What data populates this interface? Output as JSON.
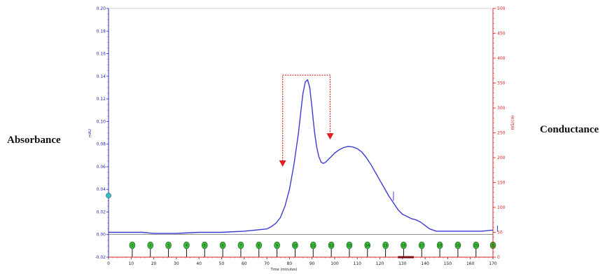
{
  "labels": {
    "left": "Absorbance",
    "right": "Conductance"
  },
  "colors": {
    "trace": "#3b3bd6",
    "left_axis": "#2a2ab8",
    "right_axis": "#e02020",
    "fraction_marker": "#3db83d",
    "pool_bracket": "#e02020"
  },
  "chart_data": {
    "type": "line",
    "title": "",
    "xlabel": "Time (minutes)",
    "ylabel": "mAU",
    "y2label": "mS/cm",
    "xlim": [
      0,
      170
    ],
    "ylim": [
      -0.02,
      0.2
    ],
    "y2lim": [
      0,
      500
    ],
    "xticks": [
      0,
      10,
      20,
      30,
      40,
      50,
      60,
      70,
      80,
      90,
      100,
      110,
      120,
      130,
      140,
      150,
      160,
      170
    ],
    "yticks": [
      -0.02,
      0.0,
      0.02,
      0.04,
      0.06,
      0.08,
      0.1,
      0.12,
      0.14,
      0.16,
      0.18,
      0.2
    ],
    "ytick_labels": [
      "-0.02",
      "0.00",
      "0.02",
      "0.04",
      "0.06",
      "0.08",
      "0.10",
      "0.12",
      "0.14",
      "0.16",
      "0.18",
      "0.20"
    ],
    "y2ticks": [
      0,
      50,
      100,
      150,
      200,
      250,
      300,
      350,
      400,
      450,
      500
    ],
    "grid": false,
    "series": [
      {
        "axis": "left",
        "x": [
          0,
          5,
          10,
          15,
          20,
          30,
          40,
          50,
          60,
          65,
          70,
          72,
          74,
          76,
          78,
          80,
          82,
          84,
          85,
          86,
          87,
          88,
          89,
          90,
          91,
          92,
          93,
          94,
          95,
          96,
          98,
          100,
          102,
          104,
          106,
          108,
          110,
          112,
          114,
          116,
          118,
          120,
          122,
          124,
          126,
          128,
          130,
          132,
          134,
          136,
          138,
          140,
          142,
          145,
          150,
          155,
          160,
          165,
          170
        ],
        "values": [
          0.002,
          0.002,
          0.002,
          0.002,
          0.001,
          0.001,
          0.002,
          0.002,
          0.003,
          0.004,
          0.005,
          0.007,
          0.01,
          0.015,
          0.025,
          0.04,
          0.062,
          0.09,
          0.108,
          0.125,
          0.135,
          0.137,
          0.13,
          0.112,
          0.092,
          0.078,
          0.069,
          0.064,
          0.063,
          0.064,
          0.068,
          0.072,
          0.075,
          0.077,
          0.078,
          0.0775,
          0.076,
          0.073,
          0.068,
          0.062,
          0.055,
          0.048,
          0.041,
          0.034,
          0.028,
          0.022,
          0.018,
          0.016,
          0.014,
          0.013,
          0.011,
          0.008,
          0.005,
          0.003,
          0.003,
          0.003,
          0.003,
          0.003,
          0.004
        ]
      }
    ],
    "fractions": [
      "1",
      "2",
      "3",
      "4",
      "5",
      "6",
      "7",
      "8",
      "9",
      "10",
      "11",
      "12",
      "13",
      "14",
      "15",
      "16",
      "17",
      "18",
      "19",
      "20",
      "21"
    ],
    "fraction_x": [
      10.5,
      18.5,
      26.5,
      34.5,
      42.5,
      50.5,
      58.5,
      66.5,
      74.5,
      82.5,
      90.5,
      98.5,
      106.5,
      114.5,
      122.5,
      130.5,
      138.5,
      146.5,
      154.5,
      162.5,
      170
    ],
    "pool_range": [
      77,
      98
    ],
    "pool_top": 0.141,
    "pool_arrow_tip": 0.06,
    "pool_arrow_tip_right": 0.084
  }
}
